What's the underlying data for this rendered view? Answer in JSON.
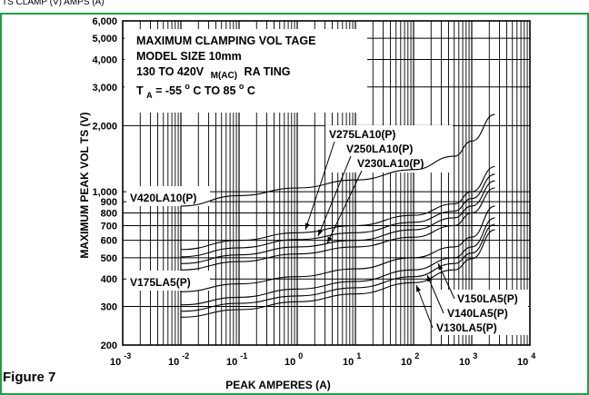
{
  "header_text": "TS CLAMP (V) AMPS (A)",
  "figure_label": "Figure 7",
  "border_color": "#1aa246",
  "chart_data": {
    "type": "line",
    "title_lines": [
      "MAXIMUM CLAMPING    VOL TAGE",
      "MODEL SIZE 10mm",
      "130  TO  420V  M(AC)  RA TING",
      "TA = -55 °C TO 85 °C"
    ],
    "title": {
      "line1": "MAXIMUM CLAMPING    VOL TAGE",
      "line2": "MODEL SIZE 10mm",
      "line3_a": "130  TO  420V",
      "line3_sub": "M(AC)",
      "line3_b": "RA TING",
      "line4_a": "T",
      "line4_sub": "A",
      "line4_b": " = -55 ",
      "line4_deg1": "o",
      "line4_c": "C TO 85 ",
      "line4_deg2": "o",
      "line4_d": "C"
    },
    "xlabel": "PEAK AMPERES (A)",
    "ylabel": "MAXIMUM PEAK    VOL TS (V)",
    "x_scale": "log",
    "y_scale": "log",
    "xlim": [
      0.001,
      10000
    ],
    "ylim": [
      200,
      6000
    ],
    "x_ticks": [
      {
        "value": 0.001,
        "base": "10",
        "exp": "-3"
      },
      {
        "value": 0.01,
        "base": "10",
        "exp": "-2"
      },
      {
        "value": 0.1,
        "base": "10",
        "exp": "-1"
      },
      {
        "value": 1,
        "base": "10",
        "exp": "0"
      },
      {
        "value": 10,
        "base": "10",
        "exp": "1"
      },
      {
        "value": 100,
        "base": "10",
        "exp": "2"
      },
      {
        "value": 1000,
        "base": "10",
        "exp": "3"
      },
      {
        "value": 10000,
        "base": "10",
        "exp": "4"
      }
    ],
    "y_ticks": [
      {
        "value": 200,
        "label": "200"
      },
      {
        "value": 300,
        "label": "300"
      },
      {
        "value": 400,
        "label": "400"
      },
      {
        "value": 500,
        "label": "500"
      },
      {
        "value": 600,
        "label": "600"
      },
      {
        "value": 700,
        "label": "700"
      },
      {
        "value": 800,
        "label": "800"
      },
      {
        "value": 900,
        "label": "900"
      },
      {
        "value": 1000,
        "label": "1,000"
      },
      {
        "value": 2000,
        "label": "2,000"
      },
      {
        "value": 3000,
        "label": "3,000"
      },
      {
        "value": 4000,
        "label": "4,000"
      },
      {
        "value": 5000,
        "label": "5,000"
      },
      {
        "value": 6000,
        "label": "6,000"
      }
    ],
    "grid": true,
    "series": [
      {
        "name": "V420LA10(P)",
        "x": [
          0.01,
          0.1,
          1,
          10,
          100,
          500,
          1000,
          2500
        ],
        "y": [
          860,
          960,
          1040,
          1130,
          1260,
          1450,
          1700,
          2250
        ]
      },
      {
        "name": "V275LA10(P)",
        "x": [
          0.01,
          0.1,
          1,
          10,
          100,
          500,
          1000,
          2500
        ],
        "y": [
          545,
          600,
          650,
          700,
          780,
          880,
          1000,
          1300
        ]
      },
      {
        "name": "V250LA10(P)",
        "x": [
          0.01,
          0.1,
          1,
          10,
          100,
          500,
          1000,
          2500
        ],
        "y": [
          505,
          555,
          605,
          650,
          725,
          815,
          930,
          1200
        ]
      },
      {
        "name": "V230LA10(P)",
        "x": [
          0.01,
          0.1,
          1,
          10,
          100,
          500,
          1000,
          2500
        ],
        "y": [
          470,
          515,
          560,
          600,
          670,
          760,
          860,
          1120
        ]
      },
      {
        "name": "",
        "x": [
          0.01,
          0.1,
          1,
          10,
          100,
          500,
          1000,
          2500
        ],
        "y": [
          440,
          480,
          520,
          560,
          620,
          700,
          800,
          1040
        ]
      },
      {
        "name": "V175LA5(P)",
        "x": [
          0.01,
          0.1,
          1,
          10,
          100,
          500,
          1000,
          2500
        ],
        "y": [
          350,
          380,
          410,
          445,
          500,
          560,
          620,
          860
        ]
      },
      {
        "name": "V150LA5(P)",
        "x": [
          0.01,
          0.1,
          1,
          10,
          100,
          500,
          1000,
          2500
        ],
        "y": [
          305,
          330,
          360,
          390,
          440,
          500,
          560,
          760
        ]
      },
      {
        "name": "V140LA5(P)",
        "x": [
          0.01,
          0.1,
          1,
          10,
          100,
          500,
          1000,
          2500
        ],
        "y": [
          285,
          310,
          335,
          365,
          410,
          470,
          525,
          710
        ]
      },
      {
        "name": "V130LA5(P)",
        "x": [
          0.01,
          0.1,
          1,
          10,
          100,
          500,
          1000,
          2500
        ],
        "y": [
          268,
          290,
          315,
          342,
          385,
          440,
          495,
          670
        ]
      }
    ],
    "annotations": [
      {
        "text": "V420LA10(P)",
        "series": "V420LA10(P)"
      },
      {
        "text": "V275LA10(P)",
        "series": "V275LA10(P)"
      },
      {
        "text": "V250LA10(P)",
        "series": "V250LA10(P)"
      },
      {
        "text": "V230LA10(P)",
        "series": "V230LA10(P)"
      },
      {
        "text": "V175LA5(P)",
        "series": "V175LA5(P)"
      },
      {
        "text": "V150LA5(P)",
        "series": "V150LA5(P)"
      },
      {
        "text": "V140LA5(P)",
        "series": "V140LA5(P)"
      },
      {
        "text": "V130LA5(P)",
        "series": "V130LA5(P)"
      }
    ]
  }
}
